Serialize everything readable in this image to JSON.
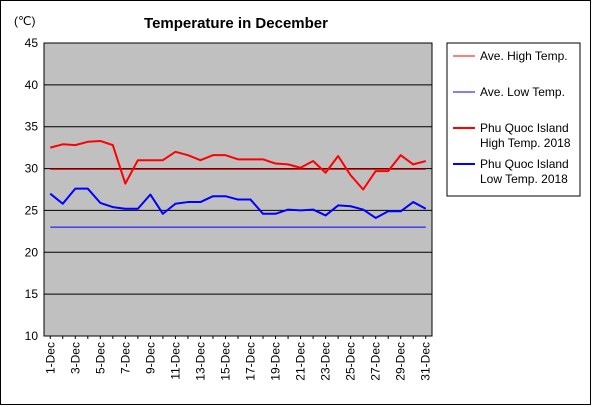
{
  "chart_data": {
    "type": "line",
    "title": "Temperature in December",
    "ylabel": "(℃)",
    "xlabel": "",
    "ylim": [
      10,
      45
    ],
    "yticks": [
      10,
      15,
      20,
      25,
      30,
      35,
      40,
      45
    ],
    "grid": true,
    "legend_position": "right",
    "x": [
      "1-Dec",
      "2-Dec",
      "3-Dec",
      "4-Dec",
      "5-Dec",
      "6-Dec",
      "7-Dec",
      "8-Dec",
      "9-Dec",
      "10-Dec",
      "11-Dec",
      "12-Dec",
      "13-Dec",
      "14-Dec",
      "15-Dec",
      "16-Dec",
      "17-Dec",
      "18-Dec",
      "19-Dec",
      "20-Dec",
      "21-Dec",
      "22-Dec",
      "23-Dec",
      "24-Dec",
      "25-Dec",
      "26-Dec",
      "27-Dec",
      "28-Dec",
      "29-Dec",
      "30-Dec",
      "31-Dec"
    ],
    "tick_labels": [
      "1-Dec",
      "3-Dec",
      "5-Dec",
      "7-Dec",
      "9-Dec",
      "11-Dec",
      "13-Dec",
      "15-Dec",
      "17-Dec",
      "19-Dec",
      "21-Dec",
      "23-Dec",
      "25-Dec",
      "27-Dec",
      "29-Dec",
      "31-Dec"
    ],
    "series": [
      {
        "name": "Ave. High Temp.",
        "color": "#ff0000",
        "width": 1,
        "values": [
          29.9,
          29.9,
          29.9,
          29.9,
          29.9,
          29.9,
          29.9,
          29.9,
          29.9,
          29.9,
          29.9,
          29.9,
          29.9,
          29.9,
          29.9,
          29.9,
          29.9,
          29.9,
          29.9,
          29.9,
          29.9,
          29.9,
          29.9,
          29.9,
          29.9,
          29.9,
          29.9,
          29.9,
          29.9,
          29.9,
          29.9
        ]
      },
      {
        "name": "Ave. Low Temp.",
        "color": "#0000ff",
        "width": 1,
        "values": [
          23.0,
          23.0,
          23.0,
          23.0,
          23.0,
          23.0,
          23.0,
          23.0,
          23.0,
          23.0,
          23.0,
          23.0,
          23.0,
          23.0,
          23.0,
          23.0,
          23.0,
          23.0,
          23.0,
          23.0,
          23.0,
          23.0,
          23.0,
          23.0,
          23.0,
          23.0,
          23.0,
          23.0,
          23.0,
          23.0,
          23.0
        ]
      },
      {
        "name": "Phu Quoc Island High Temp. 2018",
        "name_lines": [
          "Phu Quoc Island",
          "High Temp. 2018"
        ],
        "color": "#ff0000",
        "width": 2,
        "values": [
          32.5,
          32.9,
          32.8,
          33.2,
          33.3,
          32.8,
          28.2,
          31.0,
          31.0,
          31.0,
          32.0,
          31.6,
          31.0,
          31.6,
          31.6,
          31.1,
          31.1,
          31.1,
          30.6,
          30.5,
          30.1,
          30.9,
          29.5,
          31.5,
          29.2,
          27.5,
          29.7,
          29.7,
          31.6,
          30.5,
          30.9
        ]
      },
      {
        "name": "Phu Quoc Island Low Temp. 2018",
        "name_lines": [
          "Phu Quoc Island",
          "Low Temp. 2018"
        ],
        "color": "#0000ff",
        "width": 2,
        "values": [
          27.0,
          25.8,
          27.6,
          27.6,
          25.9,
          25.4,
          25.2,
          25.2,
          26.9,
          24.6,
          25.8,
          26.0,
          26.0,
          26.7,
          26.7,
          26.3,
          26.3,
          24.6,
          24.6,
          25.1,
          25.0,
          25.1,
          24.4,
          25.6,
          25.5,
          25.1,
          24.1,
          24.9,
          24.9,
          26.0,
          25.2
        ]
      }
    ]
  }
}
